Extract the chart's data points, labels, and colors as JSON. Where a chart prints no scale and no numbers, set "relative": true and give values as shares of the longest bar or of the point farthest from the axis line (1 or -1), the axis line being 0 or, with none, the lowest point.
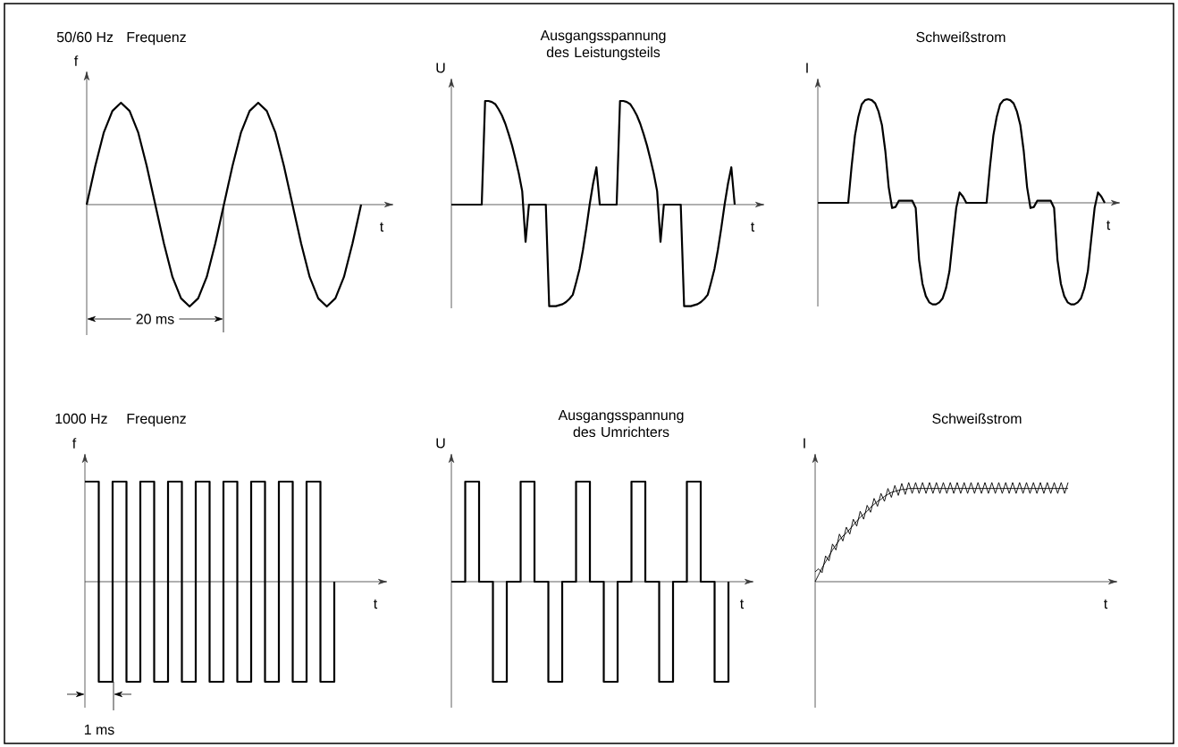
{
  "chart_data": [
    {
      "type": "line",
      "relative": true,
      "title": "Frequenz",
      "xlabel": "t",
      "ylabel": "f",
      "tick_labels": false,
      "annotations": [
        "50/60 Hz",
        "20 ms"
      ],
      "categories": [
        null,
        null,
        null,
        null,
        null,
        null,
        null,
        null,
        null,
        null,
        null,
        null,
        null,
        null,
        null,
        null,
        null,
        null,
        null,
        null,
        null,
        null,
        null,
        null,
        null,
        null,
        null,
        null,
        null,
        null,
        null,
        null,
        null
      ],
      "series": [
        {
          "color": "#000000",
          "values": [
            0,
            0.38,
            0.71,
            0.92,
            1,
            0.92,
            0.71,
            0.38,
            0,
            -0.38,
            -0.71,
            -0.92,
            -1,
            -0.92,
            -0.71,
            -0.38,
            0,
            0.38,
            0.71,
            0.92,
            1,
            0.92,
            0.71,
            0.38,
            0,
            -0.38,
            -0.71,
            -0.92,
            -1,
            -0.92,
            -0.71,
            -0.38,
            0
          ]
        }
      ]
    },
    {
      "type": "line",
      "relative": true,
      "title": "Ausgangsspannung des Leistungsteils",
      "xlabel": "t",
      "ylabel": "U",
      "tick_labels": false,
      "categories": [
        null,
        null,
        null,
        null,
        null,
        null,
        null,
        null,
        null,
        null,
        null,
        null,
        null,
        null,
        null,
        null,
        null,
        null,
        null,
        null,
        null,
        null,
        null,
        null,
        null,
        null,
        null,
        null,
        null,
        null,
        null,
        null,
        null,
        null,
        null,
        null,
        null,
        null,
        null,
        null,
        null,
        null,
        null,
        null,
        null,
        null,
        null,
        null,
        null,
        null,
        null,
        null,
        null,
        null,
        null,
        null,
        null,
        null,
        null,
        null,
        null,
        null,
        null,
        null,
        null,
        null,
        null,
        null,
        null,
        null,
        null,
        null,
        null,
        null,
        null,
        null,
        null,
        null,
        null,
        null,
        null,
        null,
        null,
        null,
        null
      ],
      "series": [
        {
          "color": "#000000",
          "values": [
            0,
            0,
            0,
            0,
            0,
            0,
            0,
            0,
            0,
            0,
            1,
            1,
            0.99,
            0.97,
            0.92,
            0.86,
            0.78,
            0.68,
            0.57,
            0.44,
            0.3,
            0.13,
            -0.36,
            0,
            0,
            0,
            0,
            0,
            0,
            -0.98,
            -0.98,
            -0.98,
            -0.97,
            -0.96,
            -0.94,
            -0.91,
            -0.87,
            -0.75,
            -0.62,
            -0.44,
            -0.23,
            0,
            0.2,
            0.36,
            0,
            0,
            0,
            0,
            0,
            0,
            1,
            1,
            0.99,
            0.97,
            0.92,
            0.86,
            0.78,
            0.68,
            0.57,
            0.44,
            0.3,
            0.13,
            -0.36,
            0,
            0,
            0,
            0,
            0,
            0,
            -0.98,
            -0.98,
            -0.98,
            -0.97,
            -0.96,
            -0.94,
            -0.91,
            -0.87,
            -0.75,
            -0.62,
            -0.44,
            -0.23,
            0,
            0.2,
            0.36,
            0
          ]
        }
      ]
    },
    {
      "type": "line",
      "relative": true,
      "title": "Schweißstrom",
      "xlabel": "t",
      "ylabel": "I",
      "tick_labels": false,
      "categories": [
        null,
        null,
        null,
        null,
        null,
        null,
        null,
        null,
        null,
        null,
        null,
        null,
        null,
        null,
        null,
        null,
        null,
        null,
        null,
        null,
        null,
        null,
        null,
        null,
        null,
        null,
        null,
        null,
        null,
        null,
        null,
        null,
        null,
        null,
        null,
        null,
        null,
        null,
        null,
        null,
        null,
        null,
        null,
        null,
        null,
        null,
        null,
        null,
        null,
        null,
        null,
        null,
        null,
        null,
        null,
        null,
        null,
        null,
        null,
        null,
        null,
        null,
        null,
        null,
        null,
        null,
        null,
        null,
        null,
        null,
        null,
        null,
        null,
        null,
        null,
        null,
        null,
        null,
        null,
        null,
        null,
        null,
        null,
        null,
        null,
        null
      ],
      "series": [
        {
          "color": "#000000",
          "values": [
            0,
            0,
            0,
            0,
            0,
            0,
            0,
            0,
            0,
            0,
            0.35,
            0.65,
            0.83,
            0.95,
            0.99,
            1,
            0.99,
            0.96,
            0.88,
            0.75,
            0.5,
            0.15,
            -0.05,
            -0.04,
            0.02,
            0.02,
            0.02,
            0.02,
            0.02,
            -0.05,
            -0.55,
            -0.78,
            -0.9,
            -0.96,
            -0.98,
            -0.98,
            -0.96,
            -0.92,
            -0.82,
            -0.66,
            -0.35,
            -0.05,
            0.1,
            0.06,
            0,
            0,
            0,
            0,
            0,
            0,
            0,
            0.35,
            0.65,
            0.83,
            0.95,
            0.99,
            1,
            0.99,
            0.96,
            0.88,
            0.75,
            0.5,
            0.15,
            -0.05,
            -0.04,
            0.02,
            0.02,
            0.02,
            0.02,
            0.02,
            -0.05,
            -0.55,
            -0.78,
            -0.9,
            -0.96,
            -0.98,
            -0.98,
            -0.96,
            -0.92,
            -0.82,
            -0.66,
            -0.35,
            -0.05,
            0.1,
            0.06,
            0
          ]
        }
      ]
    },
    {
      "type": "step",
      "relative": true,
      "title": "Frequenz",
      "xlabel": "t",
      "ylabel": "f",
      "tick_labels": false,
      "annotations": [
        "1000 Hz",
        "1 ms"
      ],
      "categories": [
        null,
        null,
        null,
        null,
        null,
        null,
        null,
        null,
        null,
        null,
        null,
        null,
        null,
        null,
        null,
        null,
        null,
        null,
        null
      ],
      "series": [
        {
          "color": "#000000",
          "values": [
            1,
            -1,
            1,
            -1,
            1,
            -1,
            1,
            -1,
            1,
            -1,
            1,
            -1,
            1,
            -1,
            1,
            -1,
            1,
            -1,
            0
          ]
        }
      ]
    },
    {
      "type": "step",
      "relative": true,
      "title": "Ausgangsspannung des Umrichters",
      "xlabel": "t",
      "ylabel": "U",
      "tick_labels": false,
      "categories": [
        null,
        null,
        null,
        null,
        null,
        null,
        null,
        null,
        null,
        null,
        null,
        null,
        null,
        null,
        null,
        null,
        null,
        null,
        null,
        null,
        null
      ],
      "series": [
        {
          "color": "#000000",
          "values": [
            0,
            1,
            0,
            -1,
            0,
            1,
            0,
            -1,
            0,
            1,
            0,
            -1,
            0,
            1,
            0,
            -1,
            0,
            1,
            0,
            -1,
            0
          ]
        }
      ]
    },
    {
      "type": "line",
      "relative": true,
      "title": "Schweißstrom",
      "xlabel": "t",
      "ylabel": "I",
      "tick_labels": false,
      "categories": [
        null,
        null,
        null,
        null,
        null,
        null,
        null,
        null,
        null,
        null,
        null,
        null,
        null,
        null,
        null,
        null,
        null,
        null,
        null,
        null,
        null,
        null,
        null,
        null,
        null,
        null,
        null,
        null,
        null,
        null,
        null,
        null,
        null,
        null,
        null,
        null,
        null,
        null,
        null,
        null,
        null,
        null,
        null,
        null,
        null,
        null,
        null,
        null,
        null,
        null,
        null,
        null,
        null,
        null,
        null,
        null,
        null,
        null,
        null,
        null,
        null,
        null,
        null,
        null,
        null,
        null,
        null,
        null,
        null,
        null,
        null,
        null,
        null,
        null
      ],
      "series": [
        {
          "color": "#000000",
          "values": [
            0,
            0.07,
            0.14,
            0.2,
            0.26,
            0.32,
            0.37,
            0.42,
            0.46,
            0.49,
            0.53,
            0.57,
            0.61,
            0.65,
            0.68,
            0.71,
            0.75,
            0.78,
            0.81,
            0.83,
            0.86,
            0.88,
            0.9,
            0.91,
            0.92,
            0.93,
            0.93,
            0.94,
            0.94,
            0.94,
            0.94,
            0.94,
            0.94,
            0.94,
            0.94,
            0.94,
            0.94,
            0.94,
            0.94,
            0.94,
            0.94,
            0.94,
            0.94,
            0.94,
            0.94,
            0.94,
            0.94,
            0.94,
            0.94,
            0.94,
            0.94,
            0.94,
            0.94,
            0.94,
            0.94,
            0.94,
            0.94,
            0.94,
            0.94,
            0.94,
            0.94,
            0.94,
            0.94,
            0.94,
            0.94,
            0.94,
            0.94,
            0.94,
            0.94,
            0.94,
            0.94,
            0.94,
            0.94,
            0.94
          ]
        },
        {
          "color": "#000000",
          "values": [
            0.1,
            0.13,
            0.09,
            0.26,
            0.21,
            0.38,
            0.32,
            0.48,
            0.41,
            0.55,
            0.48,
            0.63,
            0.56,
            0.71,
            0.63,
            0.77,
            0.7,
            0.84,
            0.76,
            0.89,
            0.81,
            0.94,
            0.85,
            0.97,
            0.87,
            0.99,
            0.88,
            1,
            0.89,
            1,
            0.89,
            1,
            0.89,
            1,
            0.89,
            1,
            0.89,
            1,
            0.89,
            1,
            0.89,
            1,
            0.89,
            1,
            0.89,
            1,
            0.89,
            1,
            0.89,
            1,
            0.89,
            1,
            0.89,
            1,
            0.89,
            1,
            0.89,
            1,
            0.89,
            1,
            0.89,
            1,
            0.89,
            1,
            0.89,
            1,
            0.89,
            1,
            0.89,
            1,
            0.89,
            1,
            0.89,
            1
          ]
        }
      ]
    }
  ]
}
